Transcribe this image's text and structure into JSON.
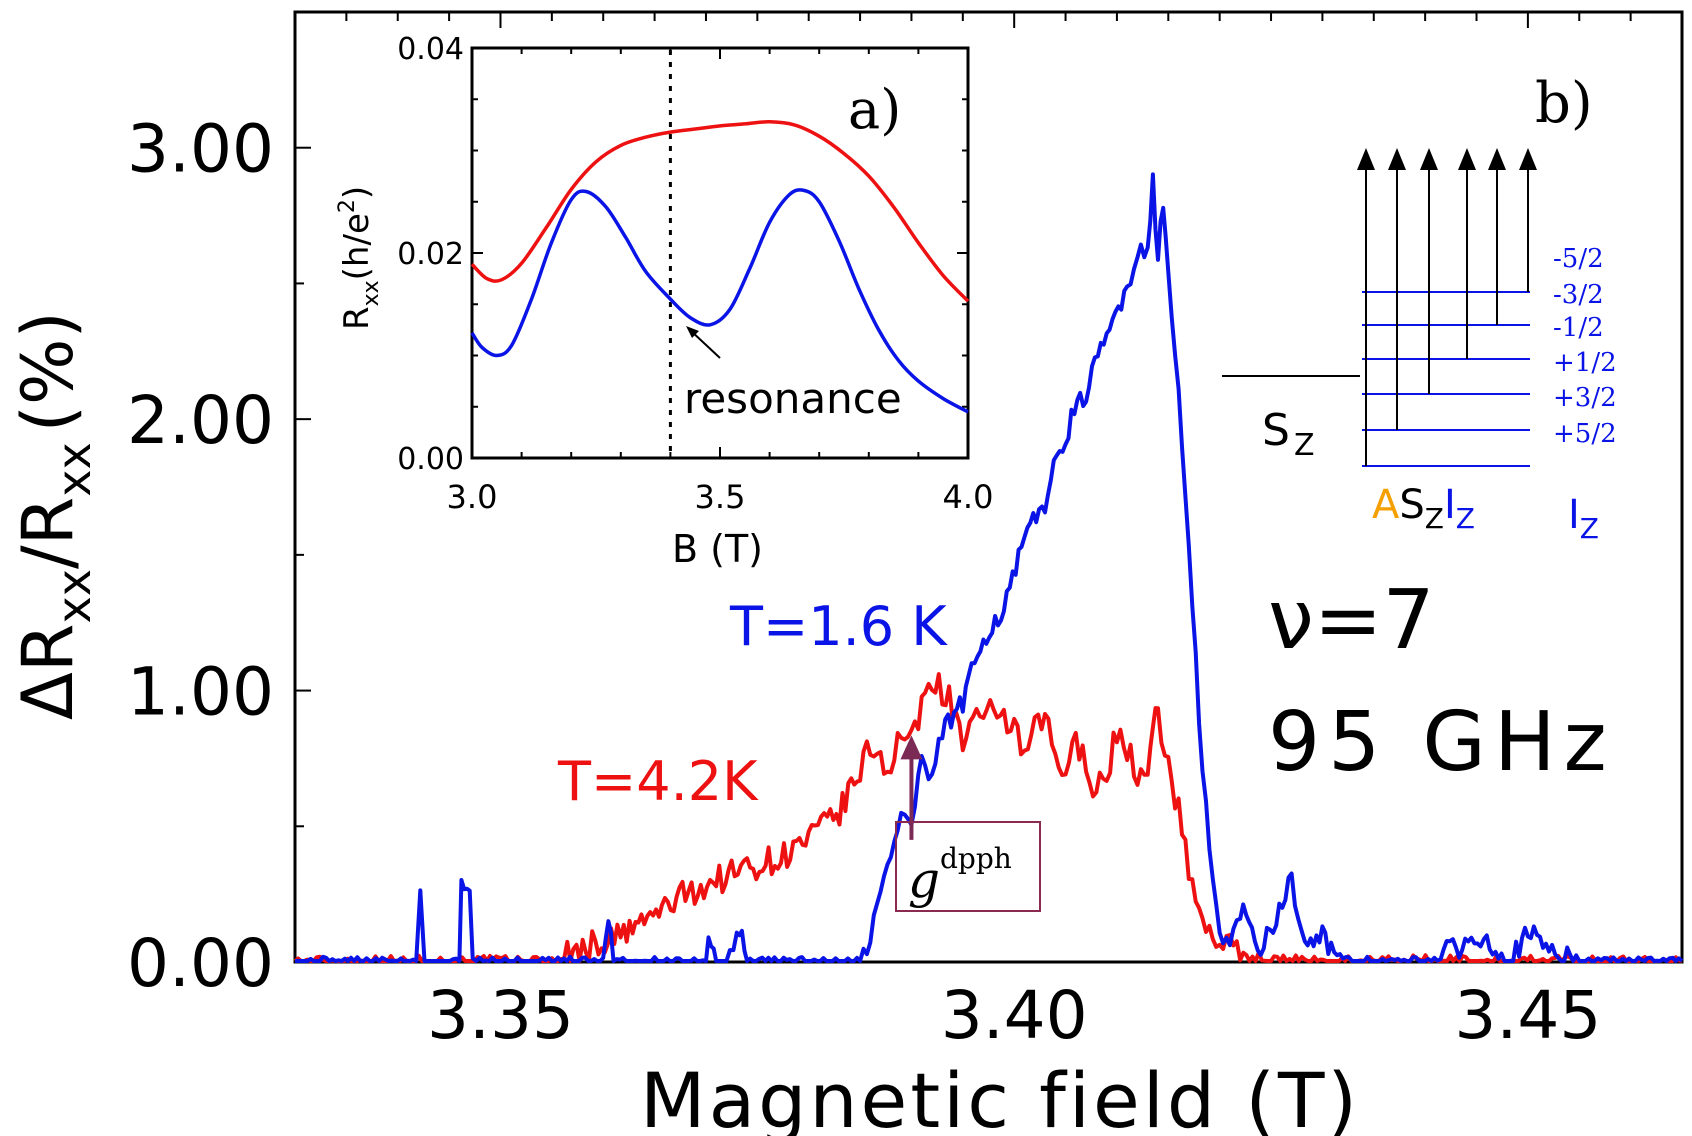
{
  "colors": {
    "blue": "#0a14e6",
    "red": "#ee1111",
    "orange": "#f5a000",
    "purple": "#7a2a55",
    "black": "#000000"
  },
  "chart_data": [
    {
      "id": "main",
      "type": "line",
      "xlabel": "Magnetic field (T)",
      "ylabel_main": "ΔR",
      "ylabel_sub1": "xx",
      "ylabel_mid": "/R",
      "ylabel_sub2": "xx",
      "ylabel_end": "(%)",
      "xlim": [
        3.33,
        3.465
      ],
      "ylim": [
        0,
        3.5
      ],
      "xticks": [
        3.35,
        3.4,
        3.45
      ],
      "xtick_labels": [
        "3.35",
        "3.40",
        "3.45"
      ],
      "yticks": [
        0,
        1,
        2,
        3
      ],
      "ytick_labels": [
        "0.00",
        "1.00",
        "2.00",
        "3.00"
      ],
      "series": [
        {
          "name": "T=1.6 K",
          "color": "#0a14e6",
          "x": [
            3.33,
            3.34,
            3.3418,
            3.3422,
            3.3426,
            3.346,
            3.3462,
            3.347,
            3.3473,
            3.348,
            3.355,
            3.36,
            3.3605,
            3.361,
            3.365,
            3.368,
            3.37,
            3.3705,
            3.371,
            3.372,
            3.373,
            3.3735,
            3.374,
            3.385,
            3.386,
            3.387,
            3.388,
            3.389,
            3.39,
            3.391,
            3.392,
            3.393,
            3.395,
            3.397,
            3.399,
            3.401,
            3.403,
            3.405,
            3.407,
            3.409,
            3.411,
            3.412,
            3.413,
            3.4135,
            3.414,
            3.4145,
            3.415,
            3.416,
            3.417,
            3.418,
            3.419,
            3.42,
            3.421,
            3.422,
            3.424,
            3.427,
            3.428,
            3.43,
            3.432,
            3.44,
            3.446,
            3.448,
            3.45,
            3.455,
            3.465
          ],
          "y": [
            0,
            0,
            0,
            0.25,
            0,
            0,
            0.3,
            0.3,
            0,
            0,
            0,
            0,
            0.15,
            0,
            0,
            0,
            0,
            0.1,
            0,
            0,
            0.1,
            0.1,
            0,
            0,
            0.1,
            0.25,
            0.4,
            0.55,
            0.5,
            0.75,
            0.65,
            0.85,
            0.95,
            1.2,
            1.3,
            1.55,
            1.7,
            1.95,
            2.1,
            2.3,
            2.5,
            2.6,
            2.65,
            2.88,
            2.6,
            2.78,
            2.55,
            2.1,
            1.5,
            0.9,
            0.4,
            0.1,
            0.05,
            0.2,
            0.05,
            0.3,
            0.1,
            0.1,
            0,
            0,
            0.1,
            0,
            0.1,
            0,
            0
          ]
        },
        {
          "name": "T=4.2K",
          "color": "#ee1111",
          "x": [
            3.33,
            3.355,
            3.358,
            3.362,
            3.364,
            3.366,
            3.368,
            3.371,
            3.374,
            3.377,
            3.38,
            3.383,
            3.385,
            3.386,
            3.387,
            3.388,
            3.389,
            3.39,
            3.391,
            3.392,
            3.393,
            3.394,
            3.395,
            3.396,
            3.397,
            3.398,
            3.399,
            3.4,
            3.401,
            3.402,
            3.403,
            3.404,
            3.405,
            3.406,
            3.407,
            3.408,
            3.409,
            3.41,
            3.411,
            3.412,
            3.413,
            3.4135,
            3.414,
            3.415,
            3.416,
            3.417,
            3.418,
            3.419,
            3.42,
            3.421,
            3.422,
            3.425,
            3.465
          ],
          "y": [
            0,
            0,
            0.05,
            0.1,
            0.15,
            0.2,
            0.25,
            0.3,
            0.35,
            0.38,
            0.45,
            0.55,
            0.7,
            0.8,
            0.75,
            0.72,
            0.85,
            0.8,
            0.95,
            1.05,
            1.0,
            0.95,
            0.8,
            0.9,
            0.85,
            0.95,
            0.9,
            0.85,
            0.75,
            0.85,
            0.9,
            0.75,
            0.7,
            0.8,
            0.75,
            0.62,
            0.7,
            0.85,
            0.78,
            0.7,
            0.65,
            0.88,
            0.9,
            0.75,
            0.55,
            0.35,
            0.18,
            0.12,
            0.08,
            0.05,
            0.03,
            0,
            0
          ]
        }
      ],
      "annotations": {
        "blue_label": "T=1.6 K",
        "red_label": "T=4.2K",
        "nu_label": "ν=7",
        "freq_label": "95 GHz",
        "g_main": "g",
        "g_sup": "dpph",
        "g_marker_x": 3.39,
        "g_marker_y": 0.82
      }
    },
    {
      "id": "inset_a",
      "type": "line",
      "panel_label": "a)",
      "xlabel": "B (T)",
      "ylabel_main": "R",
      "ylabel_sub": "xx",
      "ylabel_unit_open": "(h/e",
      "ylabel_sup": "2",
      "ylabel_unit_close": ")",
      "xlim": [
        3.0,
        4.0
      ],
      "ylim": [
        0,
        0.04
      ],
      "xticks": [
        3.0,
        3.5,
        4.0
      ],
      "xtick_labels": [
        "3.0",
        "3.5",
        "4.0"
      ],
      "yticks": [
        0,
        0.02,
        0.04
      ],
      "ytick_labels": [
        "0.00",
        "0.02",
        "0.04"
      ],
      "resonance_x": 3.4,
      "resonance_label": "resonance",
      "series": [
        {
          "name": "red",
          "color": "#ee1111",
          "x": [
            3.0,
            3.03,
            3.06,
            3.1,
            3.15,
            3.2,
            3.25,
            3.3,
            3.35,
            3.4,
            3.45,
            3.5,
            3.55,
            3.6,
            3.65,
            3.7,
            3.75,
            3.8,
            3.85,
            3.9,
            3.95,
            4.0
          ],
          "y": [
            0.0189,
            0.0175,
            0.0174,
            0.019,
            0.0225,
            0.0262,
            0.0289,
            0.0305,
            0.0313,
            0.0318,
            0.0321,
            0.0324,
            0.0326,
            0.0328,
            0.0325,
            0.0314,
            0.0297,
            0.0275,
            0.0245,
            0.021,
            0.0178,
            0.0153
          ]
        },
        {
          "name": "blue",
          "color": "#0a14e6",
          "x": [
            3.0,
            3.02,
            3.05,
            3.08,
            3.12,
            3.16,
            3.2,
            3.23,
            3.27,
            3.31,
            3.35,
            3.4,
            3.44,
            3.48,
            3.52,
            3.56,
            3.6,
            3.64,
            3.67,
            3.7,
            3.74,
            3.78,
            3.82,
            3.86,
            3.9,
            3.95,
            4.0
          ],
          "y": [
            0.0122,
            0.0108,
            0.01,
            0.011,
            0.0155,
            0.021,
            0.0252,
            0.026,
            0.0245,
            0.0215,
            0.0182,
            0.0155,
            0.0137,
            0.013,
            0.0145,
            0.0185,
            0.023,
            0.0257,
            0.0261,
            0.025,
            0.0212,
            0.0165,
            0.0125,
            0.0095,
            0.0075,
            0.0058,
            0.0045
          ]
        }
      ]
    }
  ],
  "panel_b": {
    "panel_label": "b)",
    "levels": [
      "-5/2",
      "-3/2",
      "-1/2",
      "+1/2",
      "+3/2",
      "+5/2"
    ],
    "sz_label": "S",
    "sz_sub": "Z",
    "term_a": "A",
    "term_s": "S",
    "term_s_sub": "Z",
    "term_i": "I",
    "term_i_sub": "Z",
    "iz_label": "I",
    "iz_sub": "Z"
  }
}
